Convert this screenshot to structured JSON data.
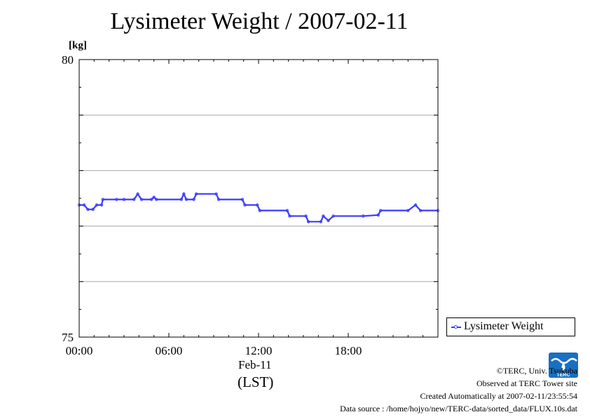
{
  "title": "Lysimeter Weight / 2007-02-11",
  "legend_label": "Lysimeter Weight",
  "date_label": "Feb-11",
  "tz_label": "(LST)",
  "credits": {
    "copyright": "©TERC, Univ. Tsukuba",
    "observed": "Observed at TERC Tower site",
    "created": "Created Automatically at 2007-02-11/23:55:54",
    "source": "Data source : /home/hojyo/new/TERC-data/sorted_data/FLUX.10s.dat"
  },
  "logo_text": "TERC",
  "colors": {
    "series": "#3a3aff",
    "grid": "#aaaaaa",
    "logo": "#1a6fc0"
  },
  "chart_data": {
    "type": "line",
    "ylabel": "[kg]",
    "xlim": [
      "00:00",
      "24:00"
    ],
    "ylim": [
      75,
      80
    ],
    "yticks": [
      "80",
      "75"
    ],
    "xticks": [
      "00:00",
      "06:00",
      "12:00",
      "18:00"
    ],
    "grid": true,
    "legend_position": "bottom-right outside",
    "series": [
      {
        "name": "Lysimeter Weight",
        "points": [
          [
            "00:00",
            77.38
          ],
          [
            "00:20",
            77.38
          ],
          [
            "00:35",
            77.3
          ],
          [
            "00:55",
            77.3
          ],
          [
            "01:10",
            77.38
          ],
          [
            "01:30",
            77.38
          ],
          [
            "01:35",
            77.48
          ],
          [
            "02:30",
            77.48
          ],
          [
            "03:00",
            77.48
          ],
          [
            "03:40",
            77.48
          ],
          [
            "03:55",
            77.58
          ],
          [
            "04:10",
            77.48
          ],
          [
            "04:50",
            77.48
          ],
          [
            "05:00",
            77.52
          ],
          [
            "05:10",
            77.48
          ],
          [
            "06:50",
            77.48
          ],
          [
            "07:00",
            77.58
          ],
          [
            "07:10",
            77.48
          ],
          [
            "07:40",
            77.48
          ],
          [
            "07:50",
            77.58
          ],
          [
            "09:10",
            77.58
          ],
          [
            "09:20",
            77.48
          ],
          [
            "10:55",
            77.48
          ],
          [
            "11:05",
            77.38
          ],
          [
            "11:55",
            77.38
          ],
          [
            "12:05",
            77.28
          ],
          [
            "13:55",
            77.28
          ],
          [
            "14:05",
            77.18
          ],
          [
            "15:10",
            77.18
          ],
          [
            "15:20",
            77.08
          ],
          [
            "16:10",
            77.08
          ],
          [
            "16:20",
            77.18
          ],
          [
            "16:40",
            77.1
          ],
          [
            "17:00",
            77.18
          ],
          [
            "19:00",
            77.18
          ],
          [
            "20:00",
            77.2
          ],
          [
            "20:10",
            77.28
          ],
          [
            "22:00",
            77.28
          ],
          [
            "22:30",
            77.38
          ],
          [
            "22:50",
            77.28
          ],
          [
            "24:00",
            77.28
          ]
        ]
      }
    ]
  }
}
